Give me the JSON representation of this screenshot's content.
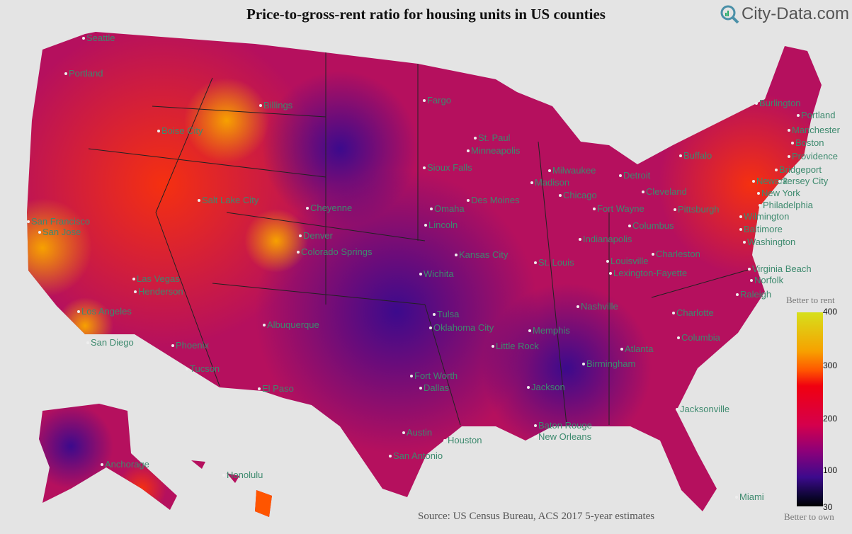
{
  "title": "Price-to-gross-rent ratio for housing units in US counties",
  "logo": {
    "text": "City-Data.com",
    "icon": "magnifier-chart-icon"
  },
  "source": "Source: US Census Bureau, ACS 2017 5-year estimates",
  "legend": {
    "top_label": "Better to rent",
    "bottom_label": "Better to own",
    "ticks": [
      "400",
      "300",
      "200",
      "100",
      "30"
    ],
    "range": [
      30,
      400
    ],
    "colors": [
      "#000000",
      "#3c0a8c",
      "#8a007a",
      "#d5004c",
      "#f00010",
      "#ff5500",
      "#f7a100",
      "#d6e01c"
    ]
  },
  "cities": [
    "Seattle",
    "Portland",
    "Billings",
    "Boise City",
    "Fargo",
    "Burlington",
    "Portland",
    "Manchester",
    "Boston",
    "Providence",
    "St. Paul",
    "Minneapolis",
    "Buffalo",
    "Milwaukee",
    "Detroit",
    "Bridgeport",
    "Madison",
    "Sioux Falls",
    "Newark",
    "Jersey City",
    "Chicago",
    "Cleveland",
    "New York",
    "Salt Lake City",
    "Des Moines",
    "Cheyenne",
    "Omaha",
    "Fort Wayne",
    "Pittsburgh",
    "Philadelphia",
    "San Francisco",
    "Wilmington",
    "San Jose",
    "Lincoln",
    "Columbus",
    "Denver",
    "Baltimore",
    "Indianapolis",
    "Washington",
    "Colorado Springs",
    "Kansas City",
    "Charleston",
    "Louisville",
    "St. Louis",
    "Virginia Beach",
    "Las Vegas",
    "Lexington-Fayette",
    "Norfolk",
    "Henderson",
    "Wichita",
    "Raleigh",
    "Los Angeles",
    "Nashville",
    "Charlotte",
    "Tulsa",
    "Albuquerque",
    "Memphis",
    "Oklahoma City",
    "San Diego",
    "Columbia",
    "Phoenix",
    "Little Rock",
    "Atlanta",
    "Birmingham",
    "Tucson",
    "Fort Worth",
    "Dallas",
    "El Paso",
    "Jackson",
    "Jacksonville",
    "Austin",
    "Baton Rouge",
    "New Orleans",
    "Houston",
    "San Antonio",
    "Anchorage",
    "Honolulu",
    "Miami"
  ]
}
